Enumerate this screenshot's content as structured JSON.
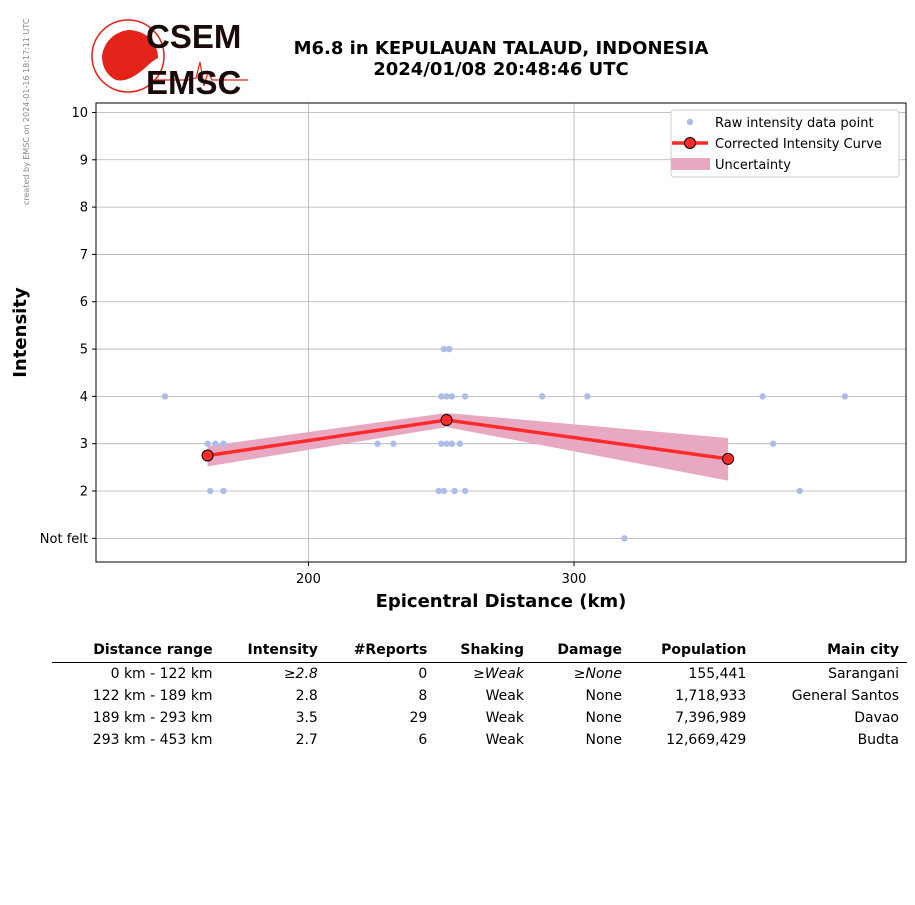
{
  "credit": "created by EMSC on 2024-01-16 18:17:11 UTC",
  "logo": {
    "top": "CSEM",
    "bottom": "EMSC"
  },
  "title": {
    "line1": "M6.8 in KEPULAUAN TALAUD, INDONESIA",
    "line2": "2024/01/08 20:48:46 UTC"
  },
  "colors": {
    "raw": "#aebde8",
    "curve": "#ff2a2a",
    "uncertainty": "#e8a8c2",
    "logo_red": "#e32219",
    "grid": "#b0b0b0"
  },
  "chart_data": {
    "type": "scatter",
    "title": "M6.8 in KEPULAUAN TALAUD, INDONESIA",
    "xlabel": "Epicentral Distance (km)",
    "ylabel": "Intensity",
    "xlim": [
      120,
      425
    ],
    "ylim": [
      0.5,
      10.2
    ],
    "x_ticks": [
      200,
      300
    ],
    "y_ticks": [
      1,
      2,
      3,
      4,
      5,
      6,
      7,
      8,
      9,
      10
    ],
    "y_tick_labels": [
      "Not felt",
      "2",
      "3",
      "4",
      "5",
      "6",
      "7",
      "8",
      "9",
      "10"
    ],
    "grid": true,
    "legend_position": "top-right",
    "legend": [
      "Raw intensity data point",
      "Corrected Intensity Curve",
      "Uncertainty"
    ],
    "raw_points": [
      [
        146,
        4
      ],
      [
        162,
        3
      ],
      [
        165,
        3
      ],
      [
        168,
        3
      ],
      [
        163,
        2
      ],
      [
        168,
        2
      ],
      [
        226,
        3
      ],
      [
        232,
        3
      ],
      [
        251,
        5
      ],
      [
        253,
        5
      ],
      [
        250,
        4
      ],
      [
        252,
        4
      ],
      [
        254,
        4
      ],
      [
        259,
        4
      ],
      [
        250,
        3
      ],
      [
        252,
        3
      ],
      [
        254,
        3
      ],
      [
        257,
        3
      ],
      [
        249,
        2
      ],
      [
        251,
        2
      ],
      [
        255,
        2
      ],
      [
        259,
        2
      ],
      [
        288,
        4
      ],
      [
        305,
        4
      ],
      [
        319,
        1
      ],
      [
        371,
        4
      ],
      [
        375,
        3
      ],
      [
        385,
        2
      ],
      [
        402,
        4
      ]
    ],
    "curve": {
      "x": [
        162,
        252,
        358
      ],
      "y": [
        2.75,
        3.5,
        2.68
      ]
    },
    "uncertainty": {
      "x": [
        162,
        252,
        358
      ],
      "upper": [
        2.95,
        3.65,
        3.12
      ],
      "lower": [
        2.52,
        3.35,
        2.22
      ]
    }
  },
  "table": {
    "headers": [
      "Distance range",
      "Intensity",
      "#Reports",
      "Shaking",
      "Damage",
      "Population",
      "Main city"
    ],
    "rows": [
      [
        "0 km -  122 km",
        "≥2.8",
        "0",
        "≥Weak",
        "≥None",
        "155,441",
        "Sarangani"
      ],
      [
        "122 km -  189 km",
        "2.8",
        "8",
        "Weak",
        "None",
        "1,718,933",
        "General Santos"
      ],
      [
        "189 km -  293 km",
        "3.5",
        "29",
        "Weak",
        "None",
        "7,396,989",
        "Davao"
      ],
      [
        "293 km -  453 km",
        "2.7",
        "6",
        "Weak",
        "None",
        "12,669,429",
        "Budta"
      ]
    ]
  }
}
